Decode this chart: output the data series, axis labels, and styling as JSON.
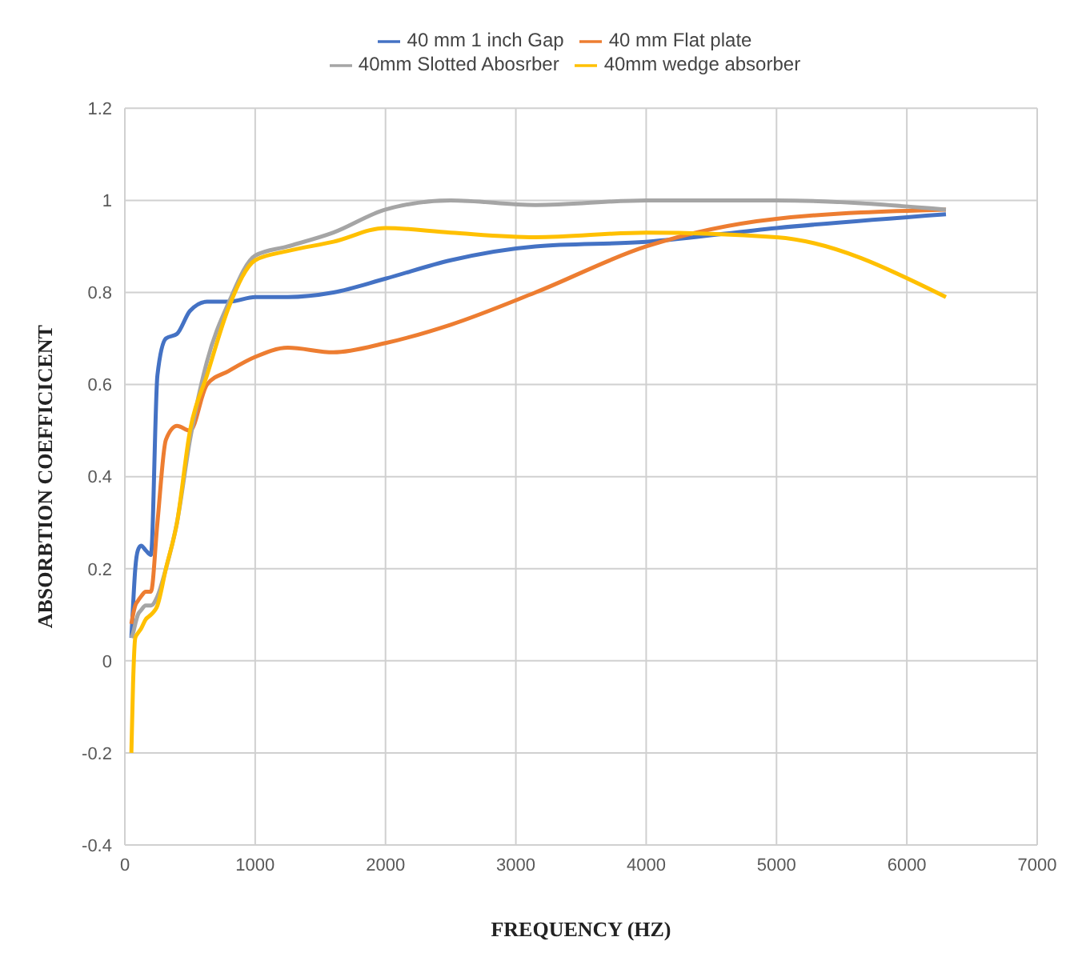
{
  "chart_data": {
    "type": "line",
    "xlabel": "FREQUENCY (HZ)",
    "ylabel": "ABSORBTION COEFFICICENT",
    "x": [
      50,
      63,
      80,
      100,
      125,
      160,
      200,
      250,
      315,
      400,
      500,
      630,
      800,
      1000,
      1250,
      1600,
      2000,
      2500,
      3150,
      4000,
      5000,
      6300
    ],
    "series": [
      {
        "name": "40 mm 1 inch Gap",
        "color": "#4472c4",
        "values": [
          0.05,
          0.12,
          0.2,
          0.24,
          0.25,
          0.24,
          0.23,
          0.62,
          0.7,
          0.71,
          0.76,
          0.78,
          0.78,
          0.79,
          0.79,
          0.8,
          0.83,
          0.87,
          0.9,
          0.91,
          0.94,
          0.97
        ]
      },
      {
        "name": "40 mm Flat plate",
        "color": "#ed7d31",
        "values": [
          0.08,
          0.1,
          0.12,
          0.13,
          0.14,
          0.15,
          0.15,
          0.3,
          0.48,
          0.51,
          0.5,
          0.6,
          0.63,
          0.66,
          0.68,
          0.67,
          0.69,
          0.73,
          0.8,
          0.9,
          0.96,
          0.98
        ]
      },
      {
        "name": "40mm Slotted Abosrber",
        "color": "#a5a5a5",
        "values": [
          0.05,
          0.06,
          0.08,
          0.1,
          0.11,
          0.12,
          0.12,
          0.14,
          0.2,
          0.3,
          0.48,
          0.65,
          0.78,
          0.88,
          0.9,
          0.93,
          0.98,
          1.0,
          0.99,
          1.0,
          1.0,
          0.98
        ]
      },
      {
        "name": "40mm wedge absorber",
        "color": "#ffc000",
        "values": [
          -0.2,
          -0.05,
          0.05,
          0.06,
          0.07,
          0.09,
          0.1,
          0.12,
          0.2,
          0.3,
          0.5,
          0.62,
          0.77,
          0.87,
          0.89,
          0.91,
          0.94,
          0.93,
          0.92,
          0.93,
          0.92,
          0.79
        ]
      }
    ],
    "xlim": [
      0,
      7000
    ],
    "xticks": [
      0,
      1000,
      2000,
      3000,
      4000,
      5000,
      6000,
      7000
    ],
    "ylim": [
      -0.4,
      1.2
    ],
    "yticks": [
      -0.4,
      -0.2,
      0,
      0.2,
      0.4,
      0.6,
      0.8,
      1,
      1.2
    ],
    "grid": true,
    "legend": "top",
    "marker": "none",
    "line_style": "solid"
  }
}
